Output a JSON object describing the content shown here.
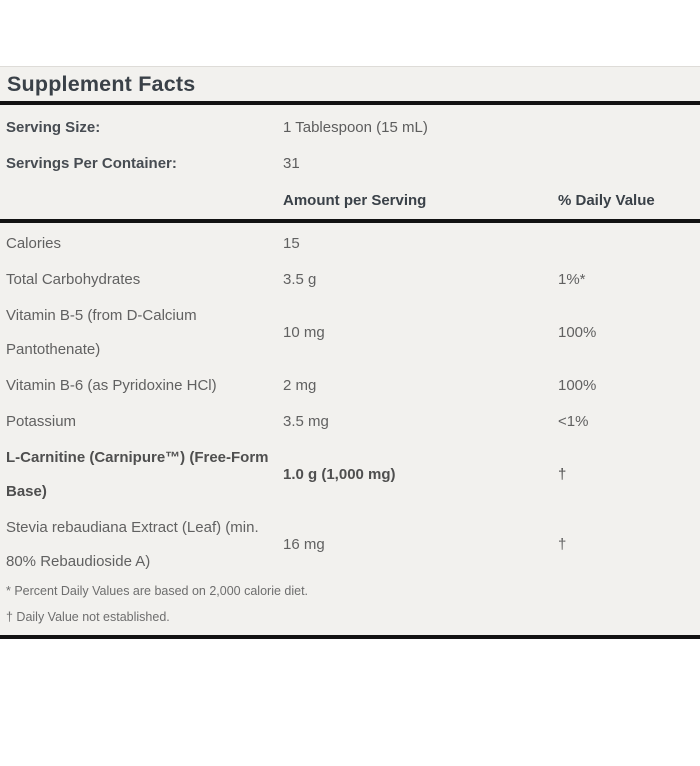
{
  "panel": {
    "title": "Supplement Facts",
    "serving_info": {
      "serving_size_label": "Serving Size:",
      "serving_size_value": "1 Tablespoon (15 mL)",
      "servings_per_container_label": "Servings Per Container:",
      "servings_per_container_value": "31"
    },
    "column_headers": {
      "amount": "Amount per Serving",
      "daily_value": "% Daily Value"
    },
    "rows": [
      {
        "name": "Calories",
        "amount": "15",
        "dv": ""
      },
      {
        "name": "Total Carbohydrates",
        "amount": "3.5 g",
        "dv": "1%*"
      },
      {
        "name": "Vitamin B-5 (from D-Calcium\nPantothenate)",
        "amount": "10 mg",
        "dv": "100%"
      },
      {
        "name": "Vitamin B-6 (as Pyridoxine HCl)",
        "amount": "2 mg",
        "dv": "100%"
      },
      {
        "name": "Potassium",
        "amount": "3.5 mg",
        "dv": "<1%"
      },
      {
        "name": "L-Carnitine (Carnipure™) (Free-Form\nBase)",
        "amount": "1.0 g (1,000 mg)",
        "dv": "†"
      },
      {
        "name": "Stevia rebaudiana Extract (Leaf) (min.\n80% Rebaudioside A)",
        "amount": "16 mg",
        "dv": "†"
      }
    ],
    "footnotes": [
      "* Percent Daily Values are based on 2,000 calorie diet.",
      "† Daily Value not established."
    ],
    "colors": {
      "panel_bg": "#f2f1ee",
      "rule_thick": "#121212",
      "title_text": "#3a4148",
      "body_text": "#616161"
    }
  }
}
